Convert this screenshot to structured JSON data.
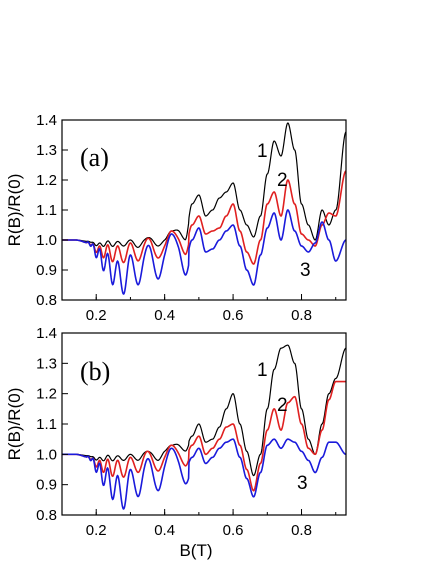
{
  "chart_data": [
    {
      "type": "line",
      "panel_label": "(a)",
      "xlabel": "",
      "ylabel": "R(B)/R(0)",
      "xlim": [
        0.1,
        0.93
      ],
      "ylim": [
        0.8,
        1.4
      ],
      "xticks": [
        "0.2",
        "0.4",
        "0.6",
        "0.8"
      ],
      "yticks": [
        "0.8",
        "0.9",
        "1.0",
        "1.1",
        "1.2",
        "1.3",
        "1.4"
      ],
      "series": [
        {
          "label": "1",
          "color": "#000000",
          "x": [
            0.1,
            0.14,
            0.18,
            0.2,
            0.22,
            0.24,
            0.26,
            0.28,
            0.3,
            0.32,
            0.34,
            0.36,
            0.38,
            0.4,
            0.42,
            0.44,
            0.46,
            0.48,
            0.5,
            0.52,
            0.54,
            0.56,
            0.58,
            0.6,
            0.62,
            0.64,
            0.66,
            0.68,
            0.7,
            0.72,
            0.74,
            0.76,
            0.78,
            0.8,
            0.82,
            0.84,
            0.86,
            0.88,
            0.9,
            0.93
          ],
          "y": [
            1.0,
            1.0,
            0.995,
            0.985,
            0.985,
            0.99,
            0.985,
            0.99,
            0.99,
            0.985,
            0.995,
            1.0,
            0.99,
            1.0,
            1.02,
            1.03,
            1.01,
            1.12,
            1.15,
            1.08,
            1.1,
            1.14,
            1.16,
            1.19,
            1.1,
            1.05,
            1.01,
            1.08,
            1.22,
            1.33,
            1.28,
            1.39,
            1.3,
            1.12,
            1.05,
            1.0,
            1.1,
            1.05,
            1.1,
            1.36
          ]
        },
        {
          "label": "2",
          "color": "#e02020",
          "x": [
            0.1,
            0.14,
            0.18,
            0.2,
            0.22,
            0.24,
            0.26,
            0.28,
            0.3,
            0.32,
            0.34,
            0.36,
            0.38,
            0.4,
            0.42,
            0.44,
            0.46,
            0.48,
            0.5,
            0.52,
            0.54,
            0.56,
            0.58,
            0.6,
            0.62,
            0.64,
            0.66,
            0.68,
            0.7,
            0.72,
            0.74,
            0.76,
            0.78,
            0.8,
            0.82,
            0.84,
            0.86,
            0.88,
            0.9,
            0.93
          ],
          "y": [
            1.0,
            1.0,
            0.99,
            0.97,
            0.96,
            0.96,
            0.95,
            0.955,
            0.96,
            0.96,
            0.97,
            0.98,
            0.97,
            0.98,
            1.0,
            1.0,
            0.98,
            1.05,
            1.08,
            1.02,
            1.03,
            1.04,
            1.08,
            1.12,
            1.03,
            0.96,
            0.92,
            1.0,
            1.12,
            1.16,
            1.08,
            1.2,
            1.12,
            1.02,
            1.0,
            0.98,
            1.05,
            1.09,
            1.08,
            1.23
          ]
        },
        {
          "label": "3",
          "color": "#1a1adb",
          "x": [
            0.1,
            0.14,
            0.18,
            0.2,
            0.22,
            0.24,
            0.26,
            0.28,
            0.3,
            0.32,
            0.34,
            0.36,
            0.38,
            0.4,
            0.42,
            0.44,
            0.46,
            0.48,
            0.5,
            0.52,
            0.54,
            0.56,
            0.58,
            0.6,
            0.62,
            0.64,
            0.66,
            0.68,
            0.7,
            0.72,
            0.74,
            0.76,
            0.78,
            0.8,
            0.82,
            0.84,
            0.86,
            0.88,
            0.9,
            0.93
          ],
          "y": [
            1.0,
            1.0,
            0.99,
            0.96,
            0.93,
            0.91,
            0.88,
            0.87,
            0.9,
            0.9,
            0.92,
            0.94,
            0.92,
            0.95,
            0.97,
            0.97,
            0.93,
            1.0,
            1.04,
            0.96,
            0.97,
            1.0,
            1.03,
            1.05,
            0.98,
            0.9,
            0.85,
            0.95,
            1.04,
            1.09,
            1.0,
            1.1,
            1.03,
            0.98,
            0.96,
            0.99,
            1.06,
            1.0,
            0.93,
            1.0
          ]
        }
      ]
    },
    {
      "type": "line",
      "panel_label": "(b)",
      "xlabel": "B(T)",
      "ylabel": "R(B)/R(0)",
      "xlim": [
        0.1,
        0.93
      ],
      "ylim": [
        0.8,
        1.4
      ],
      "xticks": [
        "0.2",
        "0.4",
        "0.6",
        "0.8"
      ],
      "yticks": [
        "0.8",
        "0.9",
        "1.0",
        "1.1",
        "1.2",
        "1.3",
        "1.4"
      ],
      "series": [
        {
          "label": "1",
          "color": "#000000",
          "x": [
            0.1,
            0.14,
            0.18,
            0.2,
            0.22,
            0.24,
            0.26,
            0.28,
            0.3,
            0.32,
            0.34,
            0.36,
            0.38,
            0.4,
            0.42,
            0.44,
            0.46,
            0.48,
            0.5,
            0.52,
            0.54,
            0.56,
            0.58,
            0.6,
            0.62,
            0.64,
            0.66,
            0.68,
            0.7,
            0.72,
            0.74,
            0.76,
            0.78,
            0.8,
            0.82,
            0.84,
            0.86,
            0.88,
            0.9,
            0.93
          ],
          "y": [
            1.0,
            1.0,
            0.995,
            0.985,
            0.985,
            0.99,
            0.985,
            0.99,
            0.99,
            0.99,
            1.0,
            1.0,
            0.99,
            1.01,
            1.02,
            1.03,
            1.02,
            1.06,
            1.1,
            1.04,
            1.05,
            1.09,
            1.15,
            1.2,
            1.1,
            1.01,
            0.93,
            1.0,
            1.15,
            1.28,
            1.35,
            1.36,
            1.3,
            1.15,
            1.05,
            1.0,
            1.1,
            1.2,
            1.25,
            1.35
          ]
        },
        {
          "label": "2",
          "color": "#e02020",
          "x": [
            0.1,
            0.14,
            0.18,
            0.2,
            0.22,
            0.24,
            0.26,
            0.28,
            0.3,
            0.32,
            0.34,
            0.36,
            0.38,
            0.4,
            0.42,
            0.44,
            0.46,
            0.48,
            0.5,
            0.52,
            0.54,
            0.56,
            0.58,
            0.6,
            0.62,
            0.64,
            0.66,
            0.68,
            0.7,
            0.72,
            0.74,
            0.76,
            0.78,
            0.8,
            0.82,
            0.84,
            0.86,
            0.88,
            0.9,
            0.93
          ],
          "y": [
            1.0,
            1.0,
            0.99,
            0.97,
            0.96,
            0.96,
            0.95,
            0.955,
            0.96,
            0.97,
            0.98,
            0.98,
            0.975,
            0.99,
            1.0,
            1.0,
            0.99,
            1.03,
            1.06,
            1.0,
            1.02,
            1.05,
            1.09,
            1.1,
            1.03,
            0.95,
            0.88,
            0.97,
            1.08,
            1.15,
            1.08,
            1.17,
            1.19,
            1.1,
            1.02,
            1.0,
            1.08,
            1.18,
            1.24,
            1.24
          ]
        },
        {
          "label": "3",
          "color": "#1a1adb",
          "x": [
            0.1,
            0.14,
            0.18,
            0.2,
            0.22,
            0.24,
            0.26,
            0.28,
            0.3,
            0.32,
            0.34,
            0.36,
            0.38,
            0.4,
            0.42,
            0.44,
            0.46,
            0.48,
            0.5,
            0.52,
            0.54,
            0.56,
            0.58,
            0.6,
            0.62,
            0.64,
            0.66,
            0.68,
            0.7,
            0.72,
            0.74,
            0.76,
            0.78,
            0.8,
            0.82,
            0.84,
            0.86,
            0.88,
            0.9,
            0.93
          ],
          "y": [
            1.0,
            1.0,
            0.99,
            0.96,
            0.93,
            0.91,
            0.88,
            0.87,
            0.9,
            0.91,
            0.93,
            0.94,
            0.93,
            0.96,
            0.97,
            0.97,
            0.95,
            0.99,
            1.02,
            0.97,
            0.99,
            1.02,
            1.04,
            1.05,
            0.99,
            0.92,
            0.86,
            0.94,
            1.03,
            1.05,
            1.02,
            1.05,
            1.04,
            1.01,
            0.98,
            0.94,
            0.99,
            1.04,
            1.04,
            1.0
          ]
        }
      ]
    }
  ]
}
